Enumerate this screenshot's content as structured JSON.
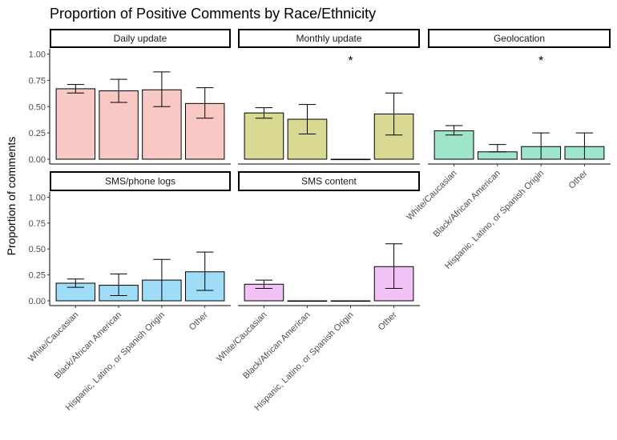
{
  "chart_data": {
    "type": "bar",
    "title": "Proportion of Positive Comments by Race/Ethnicity",
    "xlabel": "",
    "ylabel": "Proportion of comments",
    "ylim": [
      0,
      1.05
    ],
    "yticks": [
      "0.00",
      "0.25",
      "0.50",
      "0.75",
      "1.00"
    ],
    "ytick_values": [
      0,
      0.25,
      0.5,
      0.75,
      1.0
    ],
    "categories": [
      "White/Caucasian",
      "Black/African American",
      "Hispanic, Latino, or Spanish Origin",
      "Other"
    ],
    "grid": false,
    "legend": "none",
    "panels": [
      {
        "name": "Daily update",
        "color": "#F8C8C4",
        "values": [
          0.67,
          0.65,
          0.66,
          0.53
        ],
        "err_low": [
          0.63,
          0.54,
          0.5,
          0.39
        ],
        "err_high": [
          0.71,
          0.76,
          0.83,
          0.68
        ],
        "annotation": ""
      },
      {
        "name": "Monthly update",
        "color": "#D9D994",
        "values": [
          0.44,
          0.38,
          0.0,
          0.43
        ],
        "err_low": [
          0.39,
          0.24,
          0.0,
          0.23
        ],
        "err_high": [
          0.49,
          0.52,
          0.0,
          0.63
        ],
        "annotation": "*"
      },
      {
        "name": "Geolocation",
        "color": "#9FE5C9",
        "values": [
          0.27,
          0.07,
          0.12,
          0.12
        ],
        "err_low": [
          0.23,
          0.07,
          0.0,
          0.0
        ],
        "err_high": [
          0.32,
          0.14,
          0.25,
          0.25
        ],
        "annotation": "*"
      },
      {
        "name": "SMS/phone logs",
        "color": "#9FDCF8",
        "values": [
          0.17,
          0.15,
          0.2,
          0.28
        ],
        "err_low": [
          0.13,
          0.05,
          0.0,
          0.1
        ],
        "err_high": [
          0.21,
          0.26,
          0.4,
          0.47
        ],
        "annotation": ""
      },
      {
        "name": "SMS content",
        "color": "#F2C2F7",
        "values": [
          0.16,
          0.0,
          0.0,
          0.33
        ],
        "err_low": [
          0.12,
          0.0,
          0.0,
          0.12
        ],
        "err_high": [
          0.2,
          0.0,
          0.0,
          0.55
        ],
        "annotation": ""
      }
    ]
  }
}
